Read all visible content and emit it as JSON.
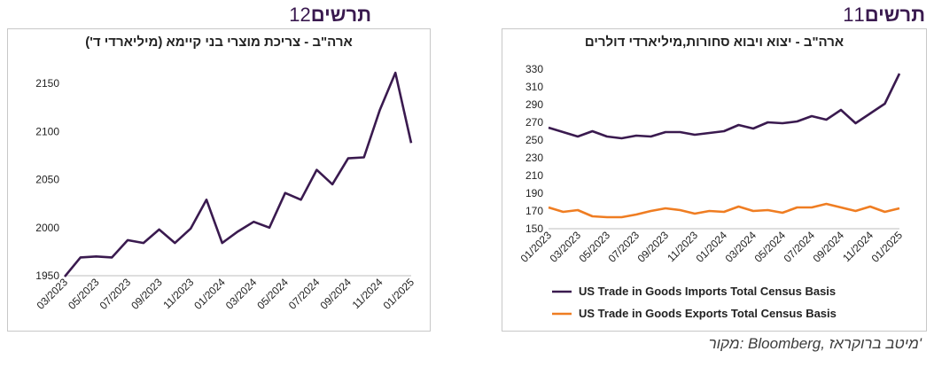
{
  "figure12": {
    "label": "תרשים",
    "number": "12",
    "chart_data": {
      "type": "line",
      "title": "ארה\"ב - צריכת מוצרי בני קיימא (מיליארדי ד')",
      "color": "#3a1a4f",
      "ylim": [
        1950,
        2150
      ],
      "yticks": [
        1950,
        2000,
        2050,
        2100,
        2150
      ],
      "xtick_labels": [
        "03/2023",
        "05/2023",
        "07/2023",
        "09/2023",
        "11/2023",
        "01/2024",
        "03/2024",
        "05/2024",
        "07/2024",
        "09/2024",
        "11/2024",
        "01/2025"
      ],
      "series": [
        {
          "values": [
            1949,
            1969,
            1970,
            1969,
            1987,
            1984,
            1998,
            1984,
            1999,
            2029,
            1984,
            1996,
            2006,
            2000,
            2036,
            2029,
            2060,
            2045,
            2072,
            2073,
            2122,
            2161,
            2088
          ]
        }
      ]
    }
  },
  "figure11": {
    "label": "תרשים",
    "number": "11",
    "chart_data": {
      "type": "line",
      "title": "ארה\"ב - יצוא ויבוא סחורות,מיליארדי דולרים",
      "ylim": [
        150,
        330
      ],
      "yticks": [
        150,
        170,
        190,
        210,
        230,
        250,
        270,
        290,
        310,
        330
      ],
      "xtick_labels": [
        "01/2023",
        "03/2023",
        "05/2023",
        "07/2023",
        "09/2023",
        "11/2023",
        "01/2024",
        "03/2024",
        "05/2024",
        "07/2024",
        "09/2024",
        "11/2024",
        "01/2025"
      ],
      "legend_position": "bottom",
      "series": [
        {
          "name": "US Trade in Goods Imports Total Census Basis",
          "color": "#3a1a4f",
          "values": [
            264,
            259,
            254,
            260,
            254,
            252,
            255,
            254,
            259,
            259,
            256,
            258,
            260,
            267,
            263,
            270,
            269,
            271,
            277,
            273,
            284,
            269,
            280,
            291,
            325
          ]
        },
        {
          "name": "US Trade in Goods Exports Total Census Basis",
          "color": "#ef7d22",
          "values": [
            174,
            169,
            171,
            164,
            163,
            163,
            166,
            170,
            173,
            171,
            167,
            170,
            169,
            175,
            170,
            171,
            168,
            174,
            174,
            178,
            174,
            170,
            175,
            169,
            173
          ]
        }
      ]
    }
  },
  "source": "מקור: Bloomberg, מיטב ברוקראז'"
}
